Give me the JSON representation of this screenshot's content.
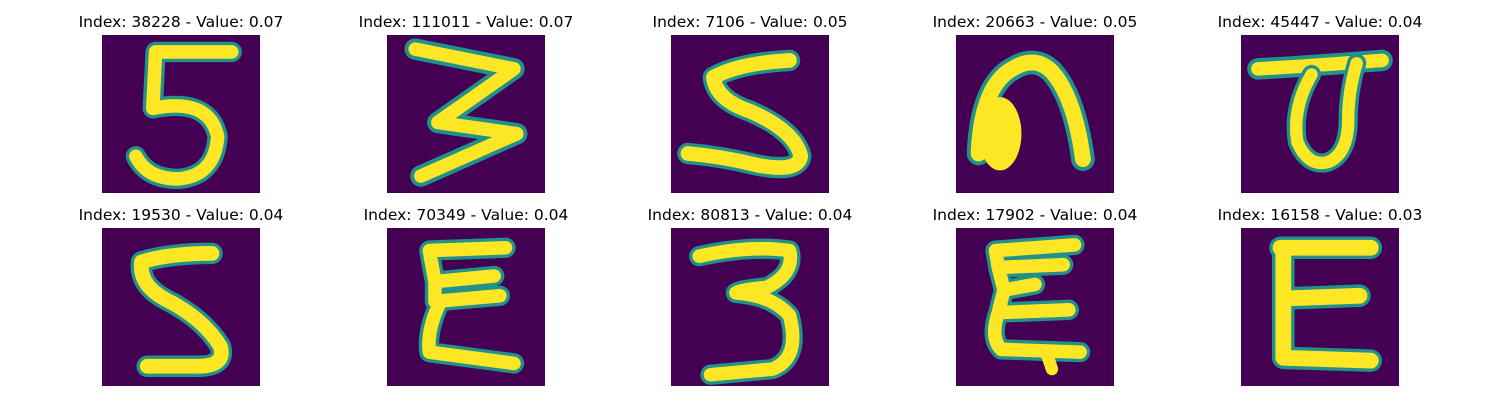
{
  "figure": {
    "background_color": "#440154",
    "stroke_colors": [
      "#fde725",
      "#21918c",
      "#3b528b"
    ],
    "images": [
      {
        "index": "38228",
        "value": "0.07",
        "title": "Index: 38228 - Value: 0.07",
        "depicts": "5"
      },
      {
        "index": "111011",
        "value": "0.07",
        "title": "Index: 111011 - Value: 0.07",
        "depicts": "3"
      },
      {
        "index": "7106",
        "value": "0.05",
        "title": "Index: 7106 - Value: 0.05",
        "depicts": "5"
      },
      {
        "index": "20663",
        "value": "0.05",
        "title": "Index: 20663 - Value: 0.05",
        "depicts": "n"
      },
      {
        "index": "45447",
        "value": "0.04",
        "title": "Index: 45447 - Value: 0.04",
        "depicts": "a"
      },
      {
        "index": "19530",
        "value": "0.04",
        "title": "Index: 19530 - Value: 0.04",
        "depicts": "5"
      },
      {
        "index": "70349",
        "value": "0.04",
        "title": "Index: 70349 - Value: 0.04",
        "depicts": "E"
      },
      {
        "index": "80813",
        "value": "0.04",
        "title": "Index: 80813 - Value: 0.04",
        "depicts": "3"
      },
      {
        "index": "17902",
        "value": "0.04",
        "title": "Index: 17902 - Value: 0.04",
        "depicts": "E"
      },
      {
        "index": "16158",
        "value": "0.03",
        "title": "Index: 16158 - Value: 0.03",
        "depicts": "E"
      }
    ]
  }
}
